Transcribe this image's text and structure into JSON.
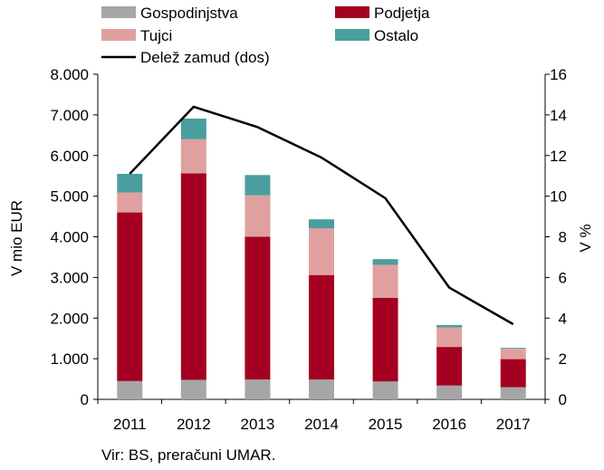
{
  "chart_data": {
    "type": "bar",
    "categories": [
      "2011",
      "2012",
      "2013",
      "2014",
      "2015",
      "2016",
      "2017"
    ],
    "stacked": true,
    "series": [
      {
        "name": "Gospodinjstva",
        "color": "#a6a6a6",
        "values": [
          450,
          480,
          490,
          490,
          440,
          340,
          300
        ]
      },
      {
        "name": "Podjetja",
        "color": "#a50021",
        "values": [
          4150,
          5080,
          3510,
          2570,
          2060,
          950,
          690
        ]
      },
      {
        "name": "Tujci",
        "color": "#e0a0a0",
        "values": [
          490,
          840,
          1020,
          1150,
          810,
          480,
          260
        ]
      },
      {
        "name": "Ostalo",
        "color": "#4a9e9e",
        "values": [
          460,
          510,
          500,
          220,
          140,
          60,
          20
        ]
      }
    ],
    "line_series": {
      "name": "Delež zamud (dos)",
      "color": "#000000",
      "axis": "right",
      "values": [
        11.1,
        14.4,
        13.4,
        11.9,
        9.9,
        5.5,
        3.7
      ]
    },
    "ylabel": "V mio EUR",
    "y2label": "V %",
    "ylim": [
      0,
      8000
    ],
    "y2lim": [
      0,
      16
    ],
    "yticks": [
      "0",
      "1.000",
      "2.000",
      "3.000",
      "4.000",
      "5.000",
      "6.000",
      "7.000",
      "8.000"
    ],
    "y2ticks": [
      "0",
      "2",
      "4",
      "6",
      "8",
      "10",
      "12",
      "14",
      "16"
    ],
    "grid": false,
    "legend_position": "top"
  },
  "source": "Vir: BS, preračuni UMAR."
}
